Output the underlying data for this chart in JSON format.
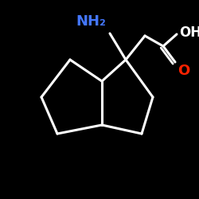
{
  "background": "#000000",
  "bond_color": "#ffffff",
  "bond_lw": 2.2,
  "nh2_color": "#4477ff",
  "oh_color": "#ffffff",
  "o_color": "#ff2200",
  "figsize": [
    2.5,
    2.5
  ],
  "dpi": 100,
  "xlim": [
    0,
    250
  ],
  "ylim": [
    0,
    250
  ],
  "font_size_nh2": 13,
  "font_size_oh": 12,
  "font_size_o": 13
}
